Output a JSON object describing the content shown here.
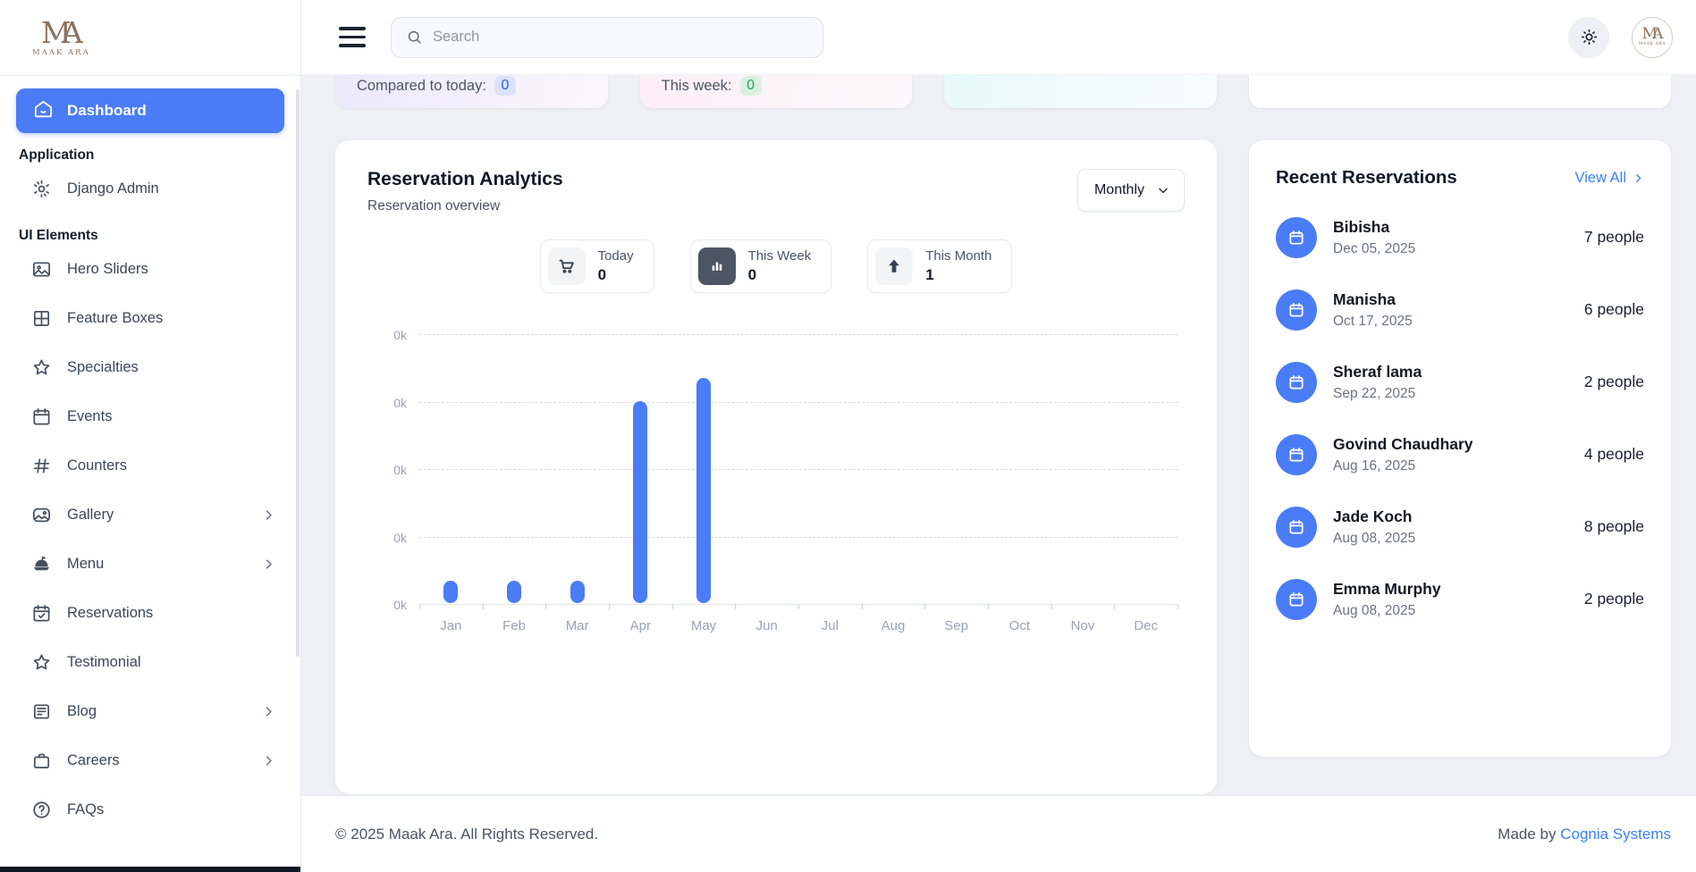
{
  "brand": {
    "monogram_left": "M",
    "monogram_right": "A",
    "name": "MAAK ARA"
  },
  "header": {
    "search_placeholder": "Search"
  },
  "sidebar": {
    "dashboard_label": "Dashboard",
    "sections": [
      {
        "title": "Application",
        "items": [
          {
            "label": "Django Admin",
            "icon": "gear",
            "chevron": false
          }
        ]
      },
      {
        "title": "UI Elements",
        "items": [
          {
            "label": "Hero Sliders",
            "icon": "image",
            "chevron": false
          },
          {
            "label": "Feature Boxes",
            "icon": "grid",
            "chevron": false
          },
          {
            "label": "Specialties",
            "icon": "star",
            "chevron": false
          },
          {
            "label": "Events",
            "icon": "calendar",
            "chevron": false
          },
          {
            "label": "Counters",
            "icon": "hash",
            "chevron": false
          },
          {
            "label": "Gallery",
            "icon": "gallery",
            "chevron": true
          },
          {
            "label": "Menu",
            "icon": "food",
            "chevron": true
          },
          {
            "label": "Reservations",
            "icon": "calendar-check",
            "chevron": false
          },
          {
            "label": "Testimonial",
            "icon": "star",
            "chevron": false
          },
          {
            "label": "Blog",
            "icon": "news",
            "chevron": true
          },
          {
            "label": "Careers",
            "icon": "briefcase",
            "chevron": true
          },
          {
            "label": "FAQs",
            "icon": "help",
            "chevron": false
          }
        ]
      }
    ]
  },
  "summary_cards": [
    {
      "label": "Compared to today:",
      "value": "0",
      "badge_bg": "#dbe2f9",
      "badge_color": "#2b61e3",
      "gradient": [
        "#ebe8fb",
        "#faf7fd"
      ]
    },
    {
      "label": "This week:",
      "value": "0",
      "badge_bg": "#d9f0e1",
      "badge_color": "#1ca45c",
      "gradient": [
        "#fdeef5",
        "#fdf9fb"
      ]
    },
    {
      "label": "",
      "value": "",
      "badge_bg": "",
      "badge_color": "",
      "gradient": [
        "#e7f9fc",
        "#f8fdfe"
      ]
    },
    {
      "label": "",
      "value": "",
      "badge_bg": "",
      "badge_color": "",
      "gradient": [
        "#ffffff",
        "#ffffff"
      ]
    }
  ],
  "analytics": {
    "title": "Reservation Analytics",
    "subtitle": "Reservation overview",
    "period_selected": "Monthly",
    "stats": [
      {
        "label": "Today",
        "value": "0",
        "icon": "cart",
        "icon_style": "light"
      },
      {
        "label": "This Week",
        "value": "0",
        "icon": "bar-chart",
        "icon_style": "dark"
      },
      {
        "label": "This Month",
        "value": "1",
        "icon": "arrow-up",
        "icon_style": "light"
      }
    ]
  },
  "chart_data": {
    "type": "bar",
    "title": "Reservation Analytics",
    "xlabel": "",
    "ylabel": "",
    "categories": [
      "Jan",
      "Feb",
      "Mar",
      "Apr",
      "May",
      "Jun",
      "Jul",
      "Aug",
      "Sep",
      "Oct",
      "Nov",
      "Dec"
    ],
    "values": [
      1,
      1,
      1,
      9,
      10,
      0,
      0,
      0,
      0,
      0,
      0,
      0
    ],
    "ylim": [
      0,
      12
    ],
    "y_ticks": [
      0,
      3,
      6,
      9,
      12
    ],
    "y_tick_labels": [
      "0k",
      "0k",
      "0k",
      "0k",
      "0k"
    ],
    "bar_color": "#4a7cf7",
    "grid": "horizontal-dashed",
    "legend": "none"
  },
  "reservations_panel": {
    "title": "Recent Reservations",
    "view_all_label": "View All",
    "items": [
      {
        "name": "Bibisha",
        "date": "Dec 05, 2025",
        "people": "7 people"
      },
      {
        "name": "Manisha",
        "date": "Oct 17, 2025",
        "people": "6 people"
      },
      {
        "name": "Sheraf lama",
        "date": "Sep 22, 2025",
        "people": "2 people"
      },
      {
        "name": "Govind Chaudhary",
        "date": "Aug 16, 2025",
        "people": "4 people"
      },
      {
        "name": "Jade Koch",
        "date": "Aug 08, 2025",
        "people": "8 people"
      },
      {
        "name": "Emma Murphy",
        "date": "Aug 08, 2025",
        "people": "2 people"
      }
    ]
  },
  "footer": {
    "copyright": "© 2025 Maak Ara. All Rights Reserved.",
    "made_by": "Made by",
    "made_by_link": "Cognia Systems"
  },
  "colors": {
    "accent": "#4a7cf7",
    "link": "#3b82f6",
    "sidebar_active_bg": "#4a7cf7",
    "background": "#eef0f4"
  }
}
